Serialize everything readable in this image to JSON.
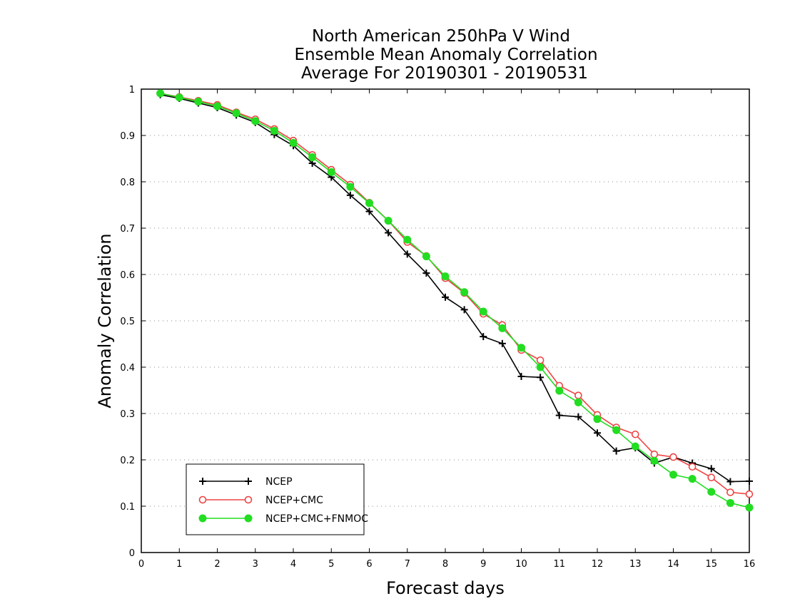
{
  "chart_data": {
    "type": "line",
    "title": [
      "North American 250hPa V Wind",
      "Ensemble Mean Anomaly Correlation",
      "Average For 20190301 - 20190531"
    ],
    "xlabel": "Forecast days",
    "ylabel": "Anomaly Correlation",
    "xlim": [
      0,
      16
    ],
    "ylim": [
      0,
      1
    ],
    "xticks": [
      0,
      1,
      2,
      3,
      4,
      5,
      6,
      7,
      8,
      9,
      10,
      11,
      12,
      13,
      14,
      15,
      16
    ],
    "yticks": [
      0,
      0.1,
      0.2,
      0.3,
      0.4,
      0.5,
      0.6,
      0.7,
      0.8,
      0.9,
      1
    ],
    "ytick_labels": [
      "0",
      "0.1",
      "0.2",
      "0.3",
      "0.4",
      "0.5",
      "0.6",
      "0.7",
      "0.8",
      "0.9",
      "1"
    ],
    "grid": "horizontal-dotted",
    "legend_position": "bottom-left",
    "x": [
      0.5,
      1,
      1.5,
      2,
      2.5,
      3,
      3.5,
      4,
      4.5,
      5,
      5.5,
      6,
      6.5,
      7,
      7.5,
      8,
      8.5,
      9,
      9.5,
      10,
      10.5,
      11,
      11.5,
      12,
      12.5,
      13,
      13.5,
      14,
      14.5,
      15,
      15.5,
      16
    ],
    "series": [
      {
        "name": "NCEP",
        "color": "#000000",
        "marker": "plus",
        "values": [
          0.988,
          0.98,
          0.97,
          0.96,
          0.944,
          0.928,
          0.902,
          0.878,
          0.84,
          0.81,
          0.771,
          0.736,
          0.69,
          0.644,
          0.603,
          0.551,
          0.524,
          0.466,
          0.451,
          0.38,
          0.378,
          0.296,
          0.293,
          0.258,
          0.219,
          0.226,
          0.193,
          0.206,
          0.193,
          0.181,
          0.153,
          0.154
        ]
      },
      {
        "name": "NCEP+CMC",
        "color": "#ee4444",
        "marker": "open-circle",
        "values": [
          0.991,
          0.983,
          0.975,
          0.966,
          0.95,
          0.935,
          0.914,
          0.889,
          0.858,
          0.826,
          0.794,
          0.755,
          0.716,
          0.67,
          0.64,
          0.592,
          0.56,
          0.515,
          0.491,
          0.437,
          0.415,
          0.36,
          0.339,
          0.297,
          0.27,
          0.255,
          0.212,
          0.206,
          0.185,
          0.162,
          0.13,
          0.126
        ]
      },
      {
        "name": "NCEP+CMC+FNMOC",
        "color": "#22dd22",
        "marker": "filled-circle",
        "values": [
          0.991,
          0.982,
          0.973,
          0.963,
          0.948,
          0.931,
          0.91,
          0.884,
          0.853,
          0.821,
          0.789,
          0.754,
          0.716,
          0.675,
          0.639,
          0.596,
          0.562,
          0.52,
          0.484,
          0.442,
          0.4,
          0.349,
          0.324,
          0.288,
          0.264,
          0.229,
          0.198,
          0.168,
          0.159,
          0.131,
          0.107,
          0.097
        ]
      }
    ]
  }
}
